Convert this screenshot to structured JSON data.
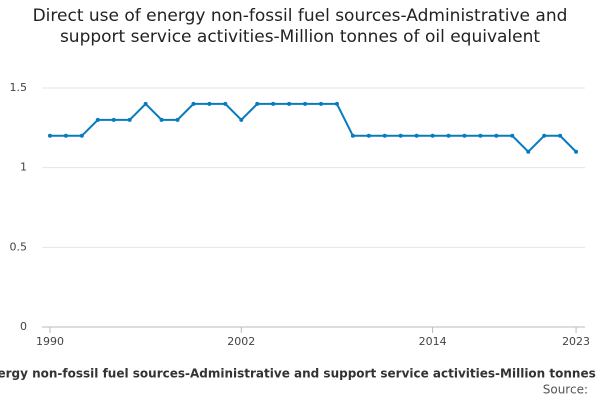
{
  "chart_data": {
    "type": "line",
    "title": "Direct use of energy non-fossil fuel sources-Administrative and support service activities-Million tonnes of oil equivalent",
    "x_label": "Direct use of energy non-fossil fuel sources-Administrative and support service activities-Million tonnes of oil equivalent",
    "source": "Source:",
    "x": [
      1990,
      1991,
      1992,
      1993,
      1994,
      1995,
      1996,
      1997,
      1998,
      1999,
      2000,
      2001,
      2002,
      2003,
      2004,
      2005,
      2006,
      2007,
      2008,
      2009,
      2010,
      2011,
      2012,
      2013,
      2014,
      2015,
      2016,
      2017,
      2018,
      2019,
      2020,
      2021,
      2022,
      2023
    ],
    "series": [
      {
        "color": "#0a7abf",
        "values": [
          1.2,
          1.2,
          1.2,
          1.3,
          1.3,
          1.3,
          1.4,
          1.3,
          1.3,
          1.4,
          1.4,
          1.4,
          1.3,
          1.4,
          1.4,
          1.4,
          1.4,
          1.4,
          1.4,
          1.2,
          1.2,
          1.2,
          1.2,
          1.2,
          1.2,
          1.2,
          1.2,
          1.2,
          1.2,
          1.2,
          1.1,
          1.2,
          1.2,
          1.1
        ]
      }
    ],
    "xlim": [
      1989.5,
      2023.56
    ],
    "xticks": [
      1990,
      2002,
      2014,
      2023
    ],
    "ylim": [
      0,
      1.5
    ],
    "yticks": [
      0,
      0.5,
      1,
      1.5
    ],
    "grid": true
  }
}
